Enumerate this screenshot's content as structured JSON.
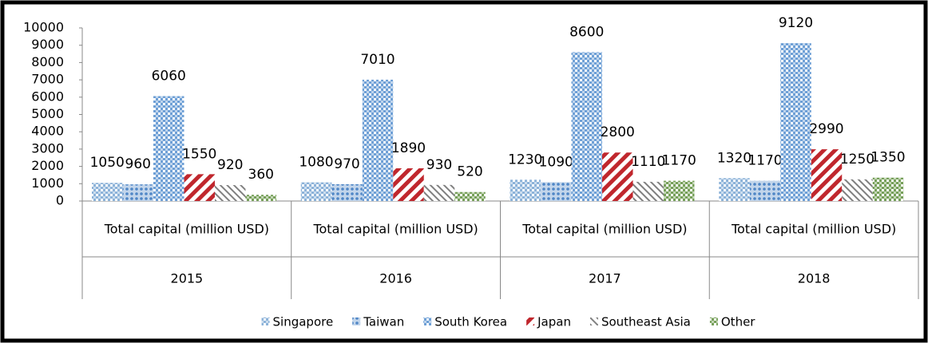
{
  "chart_data": {
    "type": "bar",
    "categories": [
      "2015",
      "2016",
      "2017",
      "2018"
    ],
    "x_sublabel": "Total capital (million USD)",
    "series": [
      {
        "name": "Singapore",
        "color": "#8db3d9",
        "pattern": "checker",
        "values": [
          1050,
          1080,
          1230,
          1320
        ]
      },
      {
        "name": "Taiwan",
        "color": "#4f86c6",
        "pattern": "dots",
        "values": [
          960,
          970,
          1090,
          1170
        ]
      },
      {
        "name": "South Korea",
        "color": "#6fa0d6",
        "pattern": "checker",
        "values": [
          6060,
          7010,
          8600,
          9120
        ]
      },
      {
        "name": "Japan",
        "color": "#c0272d",
        "pattern": "stripes",
        "values": [
          1550,
          1890,
          2800,
          2990
        ]
      },
      {
        "name": "Southeast Asia",
        "color": "#808080",
        "pattern": "thin-stripes",
        "values": [
          920,
          930,
          1110,
          1250
        ]
      },
      {
        "name": "Other",
        "color": "#77a05a",
        "pattern": "checker",
        "values": [
          360,
          520,
          1170,
          1350
        ]
      }
    ],
    "ylim": [
      0,
      10000
    ],
    "yticks": [
      0,
      1000,
      2000,
      3000,
      4000,
      5000,
      6000,
      7000,
      8000,
      9000,
      10000
    ],
    "grid": false,
    "legend": "bottom"
  }
}
